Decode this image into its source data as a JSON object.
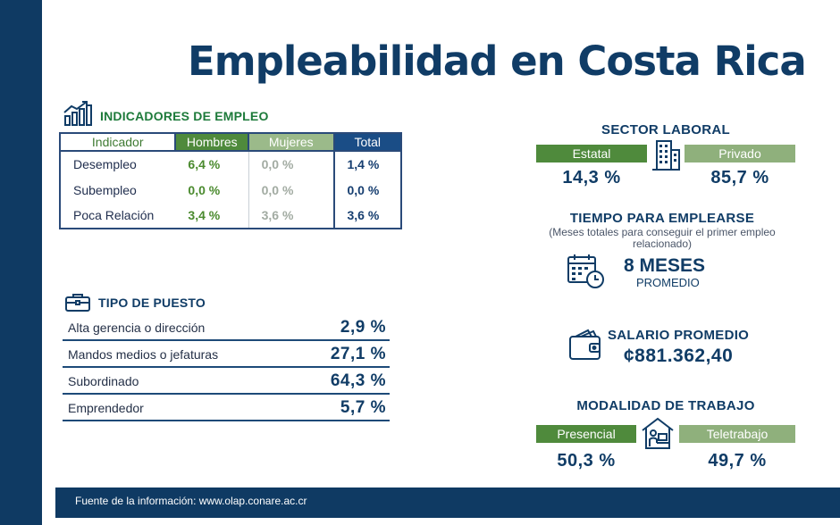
{
  "title": "Empleabilidad en Costa Rica",
  "indicadores": {
    "heading": "INDICADORES DE EMPLEO",
    "headers": [
      "Indicador",
      "Hombres",
      "Mujeres",
      "Total"
    ],
    "rows": [
      {
        "label": "Desempleo",
        "hombres": "6,4 %",
        "mujeres": "0,0 %",
        "total": "1,4 %"
      },
      {
        "label": "Subempleo",
        "hombres": "0,0 %",
        "mujeres": "0,0 %",
        "total": "0,0 %"
      },
      {
        "label": "Poca Relación",
        "hombres": "3,4 %",
        "mujeres": "3,6 %",
        "total": "3,6 %"
      }
    ]
  },
  "tipo_puesto": {
    "heading": "TIPO DE PUESTO",
    "items": [
      {
        "label": "Alta gerencia o dirección",
        "value": "2,9 %"
      },
      {
        "label": "Mandos medios o jefaturas",
        "value": "27,1 %"
      },
      {
        "label": "Subordinado",
        "value": "64,3 %"
      },
      {
        "label": "Emprendedor",
        "value": "5,7 %"
      }
    ]
  },
  "sector": {
    "heading": "SECTOR LABORAL",
    "estatal_label": "Estatal",
    "privado_label": "Privado",
    "estatal_value": "14,3 %",
    "privado_value": "85,7 %"
  },
  "tiempo": {
    "heading": "TIEMPO PARA EMPLEARSE",
    "note": "(Meses totales para conseguir el primer empleo relacionado)",
    "value": "8 MESES",
    "sub": "PROMEDIO"
  },
  "salario": {
    "heading": "SALARIO PROMEDIO",
    "value": "¢881.362,40"
  },
  "modalidad": {
    "heading": "MODALIDAD DE TRABAJO",
    "presencial_label": "Presencial",
    "teletrabajo_label": "Teletrabajo",
    "presencial_value": "50,3 %",
    "teletrabajo_value": "49,7 %"
  },
  "footer": "Fuente de la información: www.olap.conare.ac.cr",
  "colors": {
    "navy": "#0f3a63",
    "green": "#4f8a3c",
    "light_green": "#9bba8a",
    "blue": "#1a4d86"
  }
}
